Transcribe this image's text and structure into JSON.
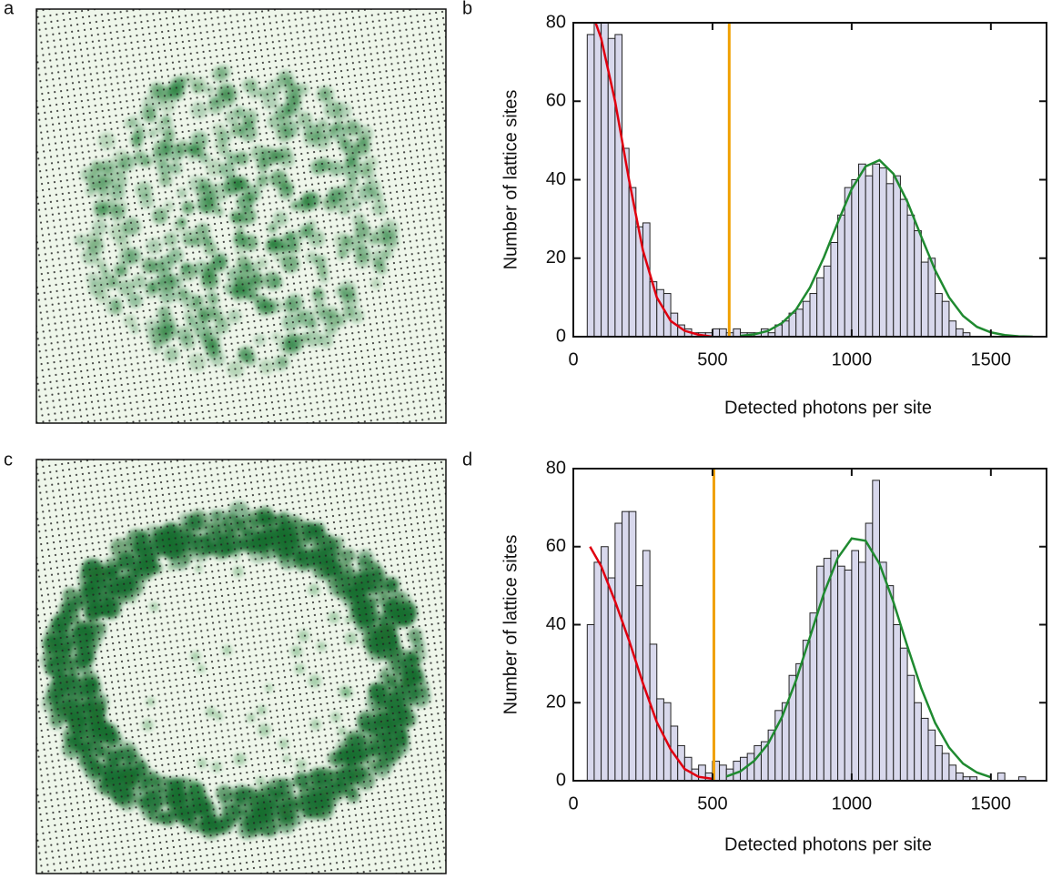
{
  "panel_labels": [
    "a",
    "b",
    "c",
    "d"
  ],
  "chart_data": [
    {
      "type": "histogram",
      "xlabel": "Detected photons per site",
      "ylabel": "Number of lattice sites",
      "xlim": [
        0,
        1700
      ],
      "xticks": [
        0,
        500,
        1000,
        1500
      ],
      "ylim": [
        0,
        80
      ],
      "yticks": [
        0,
        20,
        40,
        60,
        80
      ],
      "color": "#d8d8ec",
      "bins": [
        50,
        75,
        100,
        125,
        150,
        175,
        200,
        225,
        250,
        275,
        300,
        325,
        350,
        375,
        400,
        425,
        450,
        475,
        500,
        525,
        550,
        575,
        600,
        625,
        650,
        675,
        700,
        725,
        750,
        775,
        800,
        825,
        850,
        875,
        900,
        925,
        950,
        975,
        1000,
        1025,
        1050,
        1075,
        1100,
        1125,
        1150,
        1175,
        1200,
        1225,
        1250,
        1275,
        1300,
        1325,
        1350,
        1375,
        1400,
        1425,
        1450,
        1475,
        1500,
        1525,
        1550,
        1575,
        1600,
        1625,
        1650
      ],
      "values": [
        77,
        85,
        80,
        76,
        77,
        48,
        38,
        28,
        29,
        14,
        12,
        11,
        6,
        3,
        2,
        1,
        1,
        1,
        2,
        2,
        1,
        2,
        1,
        1,
        1,
        2,
        1,
        3,
        4,
        6,
        7,
        9,
        11,
        15,
        18,
        24,
        31,
        38,
        40,
        44,
        41,
        44,
        43,
        39,
        41,
        35,
        31,
        27,
        19,
        20,
        11,
        9,
        4,
        2,
        1,
        0,
        0,
        0,
        0,
        0,
        0,
        0,
        0,
        0
      ],
      "threshold": 560,
      "threshold_color": "#f0a000",
      "fits": [
        {
          "color": "#e00010",
          "x": [
            80,
            100,
            150,
            200,
            250,
            300,
            350,
            400,
            450,
            500
          ],
          "values": [
            80,
            76,
            60,
            40,
            22,
            10,
            4,
            1.5,
            0.5,
            0
          ]
        },
        {
          "color": "#1f8a30",
          "x": [
            600,
            650,
            700,
            750,
            800,
            850,
            900,
            950,
            1000,
            1050,
            1100,
            1150,
            1200,
            1250,
            1300,
            1350,
            1400,
            1450,
            1500,
            1550,
            1600,
            1650
          ],
          "values": [
            0.2,
            0.6,
            1.5,
            3.5,
            6.9,
            12.5,
            20.2,
            29.1,
            37.6,
            43.4,
            45,
            41.5,
            34.4,
            25.5,
            16.9,
            10,
            5.3,
            2.5,
            1.1,
            0.4,
            0.1,
            0
          ]
        }
      ]
    },
    {
      "type": "histogram",
      "xlabel": "Detected photons per site",
      "ylabel": "Number of lattice sites",
      "xlim": [
        0,
        1700
      ],
      "xticks": [
        0,
        500,
        1000,
        1500
      ],
      "ylim": [
        0,
        80
      ],
      "yticks": [
        0,
        20,
        40,
        60,
        80
      ],
      "color": "#d8d8ec",
      "bins": [
        50,
        75,
        100,
        125,
        150,
        175,
        200,
        225,
        250,
        275,
        300,
        325,
        350,
        375,
        400,
        425,
        450,
        475,
        500,
        525,
        550,
        575,
        600,
        625,
        650,
        675,
        700,
        725,
        750,
        775,
        800,
        825,
        850,
        875,
        900,
        925,
        950,
        975,
        1000,
        1025,
        1050,
        1075,
        1100,
        1125,
        1150,
        1175,
        1200,
        1225,
        1250,
        1275,
        1300,
        1325,
        1350,
        1375,
        1400,
        1425,
        1450,
        1475,
        1500,
        1525,
        1550,
        1575,
        1600,
        1625,
        1650
      ],
      "values": [
        40,
        56,
        60,
        52,
        66,
        69,
        69,
        50,
        59,
        35,
        21,
        20,
        14,
        9,
        6,
        3,
        4,
        2,
        5,
        4,
        3,
        5,
        6,
        7,
        9,
        10,
        13,
        18,
        20,
        27,
        30,
        36,
        43,
        55,
        57,
        59,
        55,
        54,
        59,
        56,
        66,
        77,
        56,
        50,
        40,
        34,
        27,
        20,
        16,
        13,
        9,
        7,
        4,
        2,
        1,
        1,
        0,
        0,
        0,
        2,
        0,
        0,
        1,
        0
      ],
      "threshold": 505,
      "threshold_color": "#f0a000",
      "fits": [
        {
          "color": "#e00010",
          "x": [
            60,
            100,
            150,
            200,
            250,
            300,
            350,
            400,
            450,
            500
          ],
          "values": [
            60,
            55,
            46,
            36,
            25,
            15,
            8,
            3,
            1,
            0.5
          ]
        },
        {
          "color": "#1f8a30",
          "x": [
            550,
            600,
            650,
            700,
            750,
            800,
            850,
            900,
            950,
            1000,
            1050,
            1100,
            1150,
            1200,
            1250,
            1300,
            1350,
            1400,
            1450,
            1500
          ],
          "values": [
            1.1,
            2.4,
            5.1,
            9.5,
            16.4,
            25.7,
            36.8,
            48,
            57.1,
            62.1,
            61.5,
            55.6,
            45.8,
            34.5,
            23.7,
            14.8,
            8.5,
            4.4,
            2.1,
            0.9
          ]
        }
      ]
    }
  ]
}
